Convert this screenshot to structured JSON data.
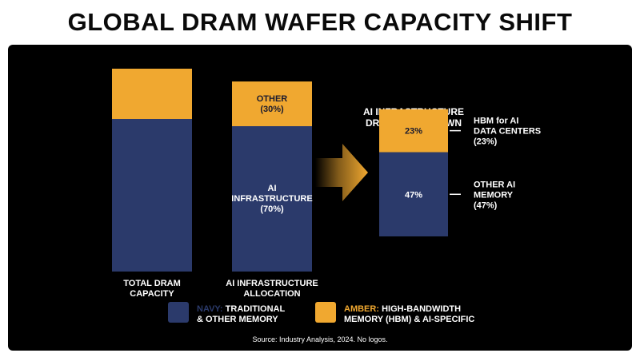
{
  "title": "GLOBAL DRAM WAFER CAPACITY SHIFT",
  "colors": {
    "navy": "#2b3a6b",
    "amber": "#f0a830",
    "background": "#000000",
    "text": "#ffffff"
  },
  "chart_data": {
    "type": "bar",
    "stacked": true,
    "bars": [
      {
        "category": [
          "TOTAL DRAM",
          "CAPACITY"
        ],
        "segments": [
          {
            "series": "navy",
            "value": 70
          },
          {
            "series": "amber",
            "value": 30
          }
        ]
      },
      {
        "category": [
          "AI INFRASTRUCTURE",
          "ALLOCATION"
        ],
        "segments": [
          {
            "series": "navy",
            "value": 70,
            "label": [
              "AI",
              "INFRASTRUCTURE",
              "(70%)"
            ]
          },
          {
            "series": "amber",
            "value": 30,
            "label": [
              "OTHER",
              "(30%)"
            ]
          }
        ]
      }
    ],
    "breakdown": {
      "title": [
        "AI INFRASTRUCTURE",
        "DRAM BREAKDOWN"
      ],
      "segments": [
        {
          "series": "navy",
          "value": 47,
          "label": "47%",
          "callout": [
            "OTHER AI",
            "MEMORY",
            "(47%)"
          ]
        },
        {
          "series": "amber",
          "value": 23,
          "label": "23%",
          "callout": [
            "HBM for AI",
            "DATA CENTERS",
            "(23%)"
          ]
        }
      ]
    },
    "legend": [
      {
        "series": "navy",
        "key": "NAVY:",
        "text": [
          "TRADITIONAL",
          "& OTHER MEMORY"
        ]
      },
      {
        "series": "amber",
        "key": "AMBER:",
        "text": [
          "HIGH-BANDWIDTH",
          "MEMORY (HBM) & AI-SPECIFIC"
        ]
      }
    ],
    "legend_position": "bottom",
    "grid": false,
    "source": "Source: Industry Analysis, 2024. No logos."
  }
}
